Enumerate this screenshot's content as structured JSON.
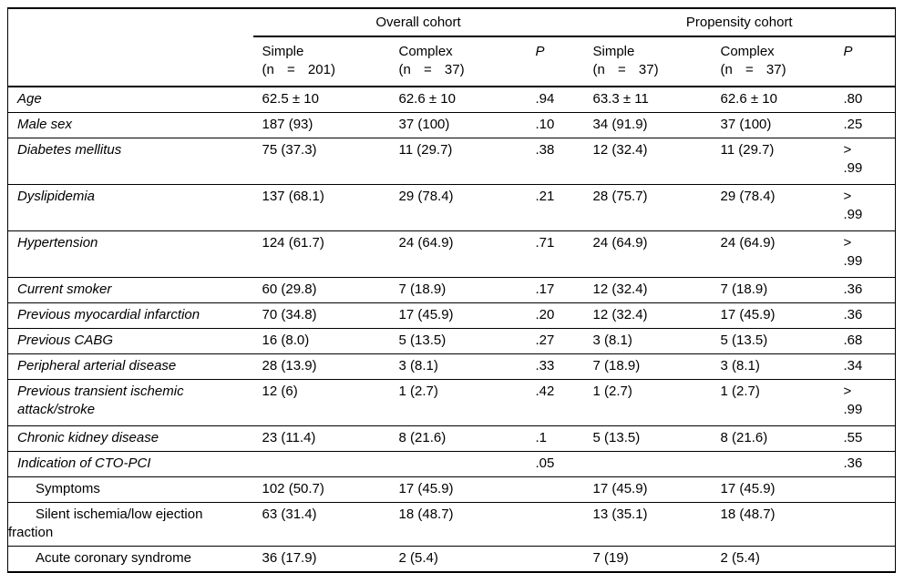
{
  "table": {
    "group_headers": [
      "Overall cohort",
      "Propensity cohort"
    ],
    "columns": [
      {
        "label": "Simple",
        "n": "(n = 201)"
      },
      {
        "label": "Complex",
        "n": "(n = 37)"
      },
      {
        "label": "P",
        "n": ""
      },
      {
        "label": "Simple",
        "n": "(n = 37)"
      },
      {
        "label": "Complex",
        "n": "(n = 37)"
      },
      {
        "label": "P",
        "n": ""
      }
    ],
    "rows": [
      {
        "label": "Age",
        "indent": false,
        "values": [
          "62.5 ± 10",
          "62.6 ± 10",
          ".94",
          "63.3 ± 11",
          "62.6 ± 10",
          ".80"
        ]
      },
      {
        "label": "Male sex",
        "indent": false,
        "values": [
          "187 (93)",
          "37 (100)",
          ".10",
          "34 (91.9)",
          "37 (100)",
          ".25"
        ]
      },
      {
        "label": "Diabetes mellitus",
        "indent": false,
        "values": [
          "75 (37.3)",
          "11 (29.7)",
          ".38",
          "12 (32.4)",
          "11 (29.7)",
          ">\n.99"
        ]
      },
      {
        "label": "Dyslipidemia",
        "indent": false,
        "values": [
          "137 (68.1)",
          "29 (78.4)",
          ".21",
          "28 (75.7)",
          "29 (78.4)",
          ">\n.99"
        ]
      },
      {
        "label": "Hypertension",
        "indent": false,
        "values": [
          "124 (61.7)",
          "24 (64.9)",
          ".71",
          "24 (64.9)",
          "24 (64.9)",
          ">\n.99"
        ]
      },
      {
        "label": "Current smoker",
        "indent": false,
        "values": [
          "60 (29.8)",
          "7 (18.9)",
          ".17",
          "12 (32.4)",
          "7 (18.9)",
          ".36"
        ]
      },
      {
        "label": "Previous myocardial infarction",
        "indent": false,
        "values": [
          "70 (34.8)",
          "17 (45.9)",
          ".20",
          "12 (32.4)",
          "17 (45.9)",
          ".36"
        ]
      },
      {
        "label": "Previous CABG",
        "indent": false,
        "values": [
          "16 (8.0)",
          "5 (13.5)",
          ".27",
          "3 (8.1)",
          "5 (13.5)",
          ".68"
        ]
      },
      {
        "label": "Peripheral arterial disease",
        "indent": false,
        "values": [
          "28 (13.9)",
          "3 (8.1)",
          ".33",
          "7 (18.9)",
          "3 (8.1)",
          ".34"
        ]
      },
      {
        "label": "Previous transient ischemic attack/stroke",
        "indent": false,
        "values": [
          "12 (6)",
          "1 (2.7)",
          ".42",
          "1 (2.7)",
          "1 (2.7)",
          ">\n.99"
        ]
      },
      {
        "label": "Chronic kidney disease",
        "indent": false,
        "values": [
          "23 (11.4)",
          "8 (21.6)",
          ".1",
          "5 (13.5)",
          "8 (21.6)",
          ".55"
        ]
      },
      {
        "label": "Indication of CTO-PCI",
        "indent": false,
        "values": [
          "",
          "",
          ".05",
          "",
          "",
          ".36"
        ]
      },
      {
        "label": "Symptoms",
        "indent": true,
        "values": [
          "102 (50.7)",
          "17 (45.9)",
          "",
          "17 (45.9)",
          "17 (45.9)",
          ""
        ]
      },
      {
        "label": "Silent ischemia/low ejection fraction",
        "indent": true,
        "values": [
          "63 (31.4)",
          "18 (48.7)",
          "",
          "13 (35.1)",
          "18 (48.7)",
          ""
        ]
      },
      {
        "label": "Acute coronary syndrome",
        "indent": true,
        "values": [
          "36 (17.9)",
          "2 (5.4)",
          "",
          "7 (19)",
          "2 (5.4)",
          ""
        ]
      }
    ]
  }
}
